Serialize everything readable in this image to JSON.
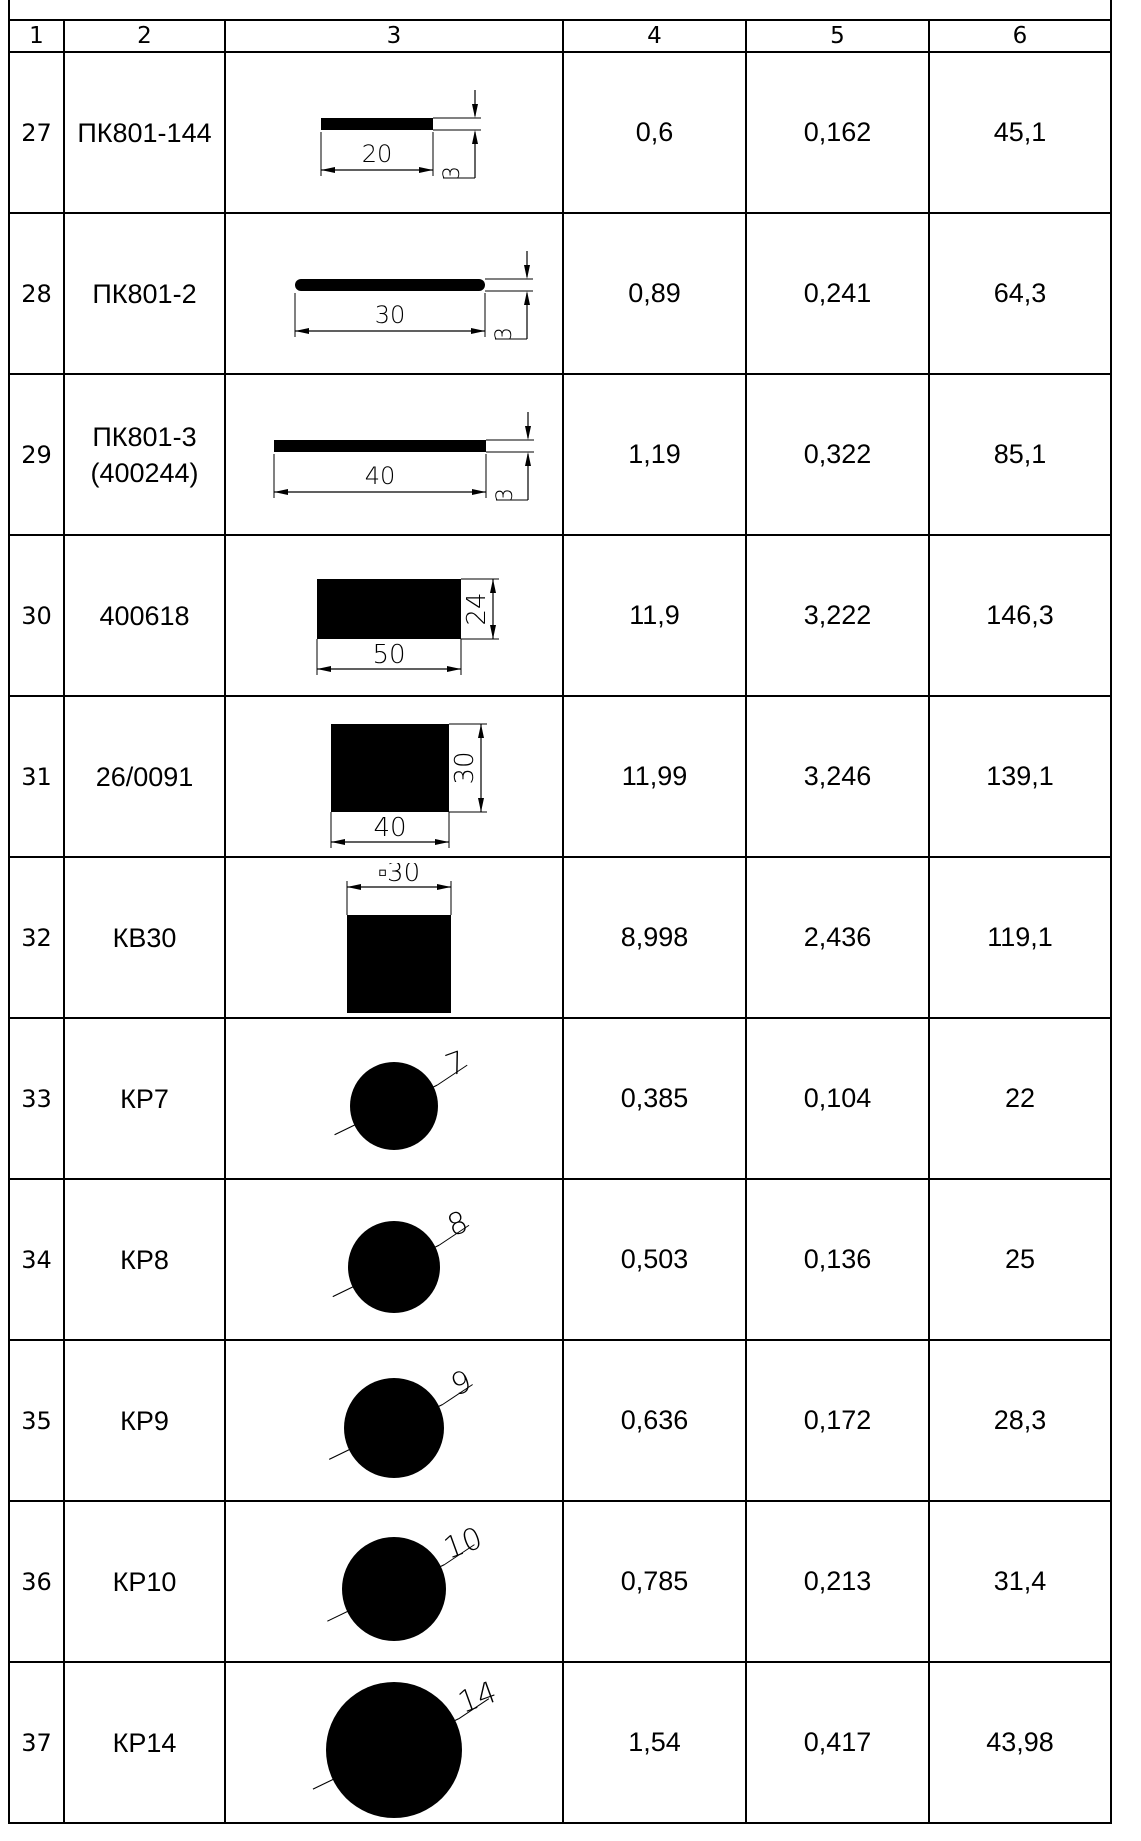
{
  "headers": [
    "1",
    "2",
    "3",
    "4",
    "5",
    "6"
  ],
  "rows": [
    {
      "num": "27",
      "name": "ПК801-144",
      "shape": "bar",
      "dims": [
        "20",
        "3"
      ],
      "c4": "0,6",
      "c5": "0,162",
      "c6": "45,1"
    },
    {
      "num": "28",
      "name": "ПК801-2",
      "shape": "bar-rounded",
      "dims": [
        "30",
        "3"
      ],
      "c4": "0,89",
      "c5": "0,241",
      "c6": "64,3"
    },
    {
      "num": "29",
      "name": "ПК801-3 (400244)",
      "shape": "bar",
      "dims": [
        "40",
        "3"
      ],
      "c4": "1,19",
      "c5": "0,322",
      "c6": "85,1"
    },
    {
      "num": "30",
      "name": "400618",
      "shape": "rect",
      "dims": [
        "50",
        "24"
      ],
      "c4": "11,9",
      "c5": "3,222",
      "c6": "146,3"
    },
    {
      "num": "31",
      "name": "26/0091",
      "shape": "rect",
      "dims": [
        "40",
        "30"
      ],
      "c4": "11,99",
      "c5": "3,246",
      "c6": "139,1"
    },
    {
      "num": "32",
      "name": "КВ30",
      "shape": "square",
      "dims": [
        "▫30"
      ],
      "c4": "8,998",
      "c5": "2,436",
      "c6": "119,1"
    },
    {
      "num": "33",
      "name": "КР7",
      "shape": "circle",
      "dims": [
        "7"
      ],
      "c4": "0,385",
      "c5": "0,104",
      "c6": "22"
    },
    {
      "num": "34",
      "name": "КР8",
      "shape": "circle",
      "dims": [
        "8"
      ],
      "c4": "0,503",
      "c5": "0,136",
      "c6": "25"
    },
    {
      "num": "35",
      "name": "КР9",
      "shape": "circle",
      "dims": [
        "9"
      ],
      "c4": "0,636",
      "c5": "0,172",
      "c6": "28,3"
    },
    {
      "num": "36",
      "name": "КР10",
      "shape": "circle",
      "dims": [
        "10"
      ],
      "c4": "0,785",
      "c5": "0,213",
      "c6": "31,4"
    },
    {
      "num": "37",
      "name": "КР14",
      "shape": "circle",
      "dims": [
        "14"
      ],
      "c4": "1,54",
      "c5": "0,417",
      "c6": "43,98"
    }
  ]
}
